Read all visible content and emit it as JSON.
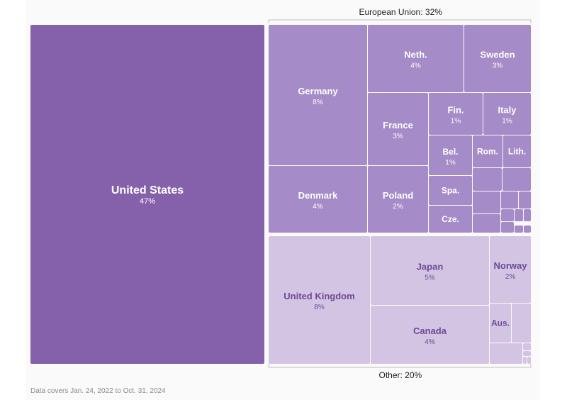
{
  "colors": {
    "us": "#8661ab",
    "eu": "#a58bc7",
    "other": "#d3c4e3",
    "eu_text": "#ffffff",
    "other_text": "#6c4a96",
    "bracket": "#bdbdbd"
  },
  "groups": {
    "eu_label": "European Union: 32%",
    "other_label": "Other: 20%"
  },
  "chart_data": {
    "type": "treemap",
    "items": [
      {
        "name": "United States",
        "value": "47%",
        "group": "us"
      },
      {
        "name": "Germany",
        "value": "8%",
        "group": "eu"
      },
      {
        "name": "Neth.",
        "value": "4%",
        "group": "eu"
      },
      {
        "name": "Sweden",
        "value": "3%",
        "group": "eu"
      },
      {
        "name": "France",
        "value": "3%",
        "group": "eu"
      },
      {
        "name": "Fin.",
        "value": "1%",
        "group": "eu"
      },
      {
        "name": "Italy",
        "value": "1%",
        "group": "eu"
      },
      {
        "name": "Bel.",
        "value": "1%",
        "group": "eu"
      },
      {
        "name": "Rom.",
        "value": "",
        "group": "eu"
      },
      {
        "name": "Lith.",
        "value": "",
        "group": "eu"
      },
      {
        "name": "Denmark",
        "value": "4%",
        "group": "eu"
      },
      {
        "name": "Poland",
        "value": "2%",
        "group": "eu"
      },
      {
        "name": "Spa.",
        "value": "",
        "group": "eu"
      },
      {
        "name": "Cze.",
        "value": "",
        "group": "eu"
      },
      {
        "name": "United Kingdom",
        "value": "8%",
        "group": "other"
      },
      {
        "name": "Japan",
        "value": "5%",
        "group": "other"
      },
      {
        "name": "Norway",
        "value": "2%",
        "group": "other"
      },
      {
        "name": "Canada",
        "value": "4%",
        "group": "other"
      },
      {
        "name": "Aus.",
        "value": "",
        "group": "other"
      }
    ]
  },
  "footnote": "Data covers Jan. 24, 2022 to Oct. 31, 2024"
}
